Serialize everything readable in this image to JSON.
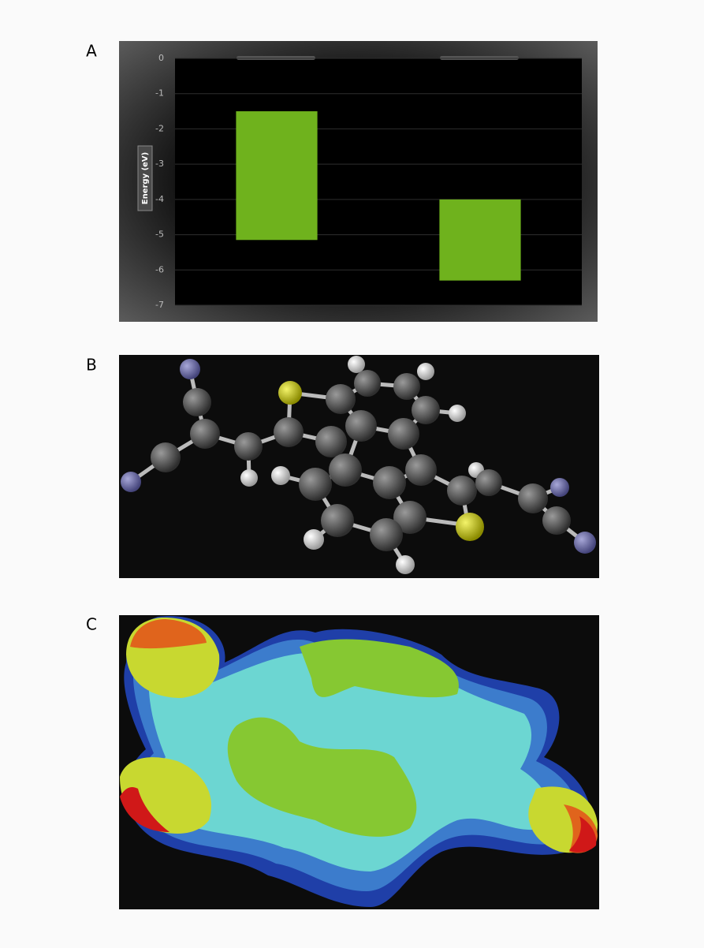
{
  "panel_labels": [
    "A",
    "B",
    "C"
  ],
  "chart_data": {
    "type": "floating-bar",
    "y_label": "Energy (eV)",
    "categories": [
      null,
      null
    ],
    "series": [
      {
        "color": "#6fb21d",
        "top": [
          -1.5,
          -4.0
        ],
        "bottom": [
          -5.15,
          -6.3
        ]
      }
    ],
    "ylim": [
      -7,
      0
    ],
    "yticks": [
      0,
      -1,
      -2,
      -3,
      -4,
      -5,
      -6,
      -7
    ],
    "grid": true
  }
}
